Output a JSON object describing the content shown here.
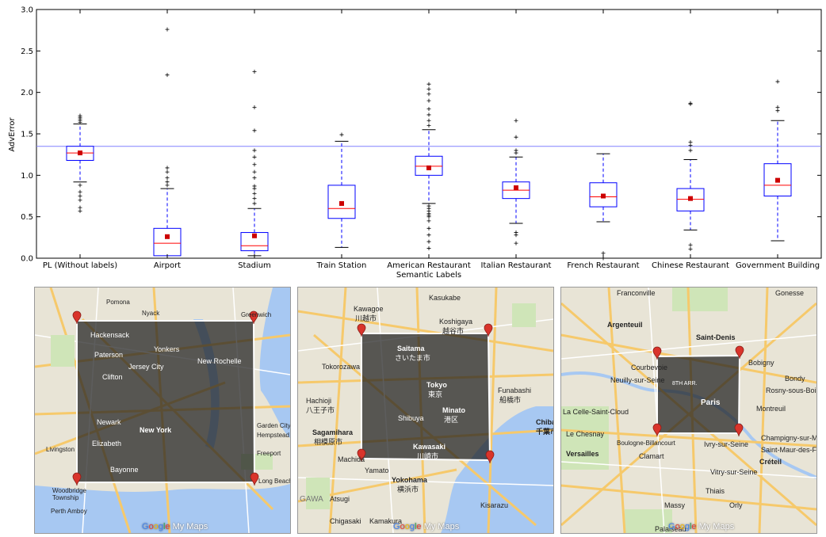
{
  "chart_data": {
    "type": "boxplot",
    "xlabel": "Semantic Labels",
    "ylabel": "AdvError",
    "ylim": [
      0,
      3.0
    ],
    "yticks": [
      "0.0",
      "0.5",
      "1.0",
      "1.5",
      "2.0",
      "2.5",
      "3.0"
    ],
    "reference_line": 1.35,
    "categories": [
      "PL (Without labels)",
      "Airport",
      "Stadium",
      "Train Station",
      "American Restaurant",
      "Italian Restaurant",
      "French Restaurant",
      "Chinese Restaurant",
      "Government Building"
    ],
    "boxes": [
      {
        "q1": 1.18,
        "median": 1.27,
        "q3": 1.35,
        "whislo": 0.92,
        "whishi": 1.62,
        "mean": 1.27,
        "fliers": [
          0.57,
          0.61,
          0.7,
          0.75,
          0.8,
          0.88,
          1.64,
          1.66,
          1.68,
          1.7,
          1.72
        ]
      },
      {
        "q1": 0.03,
        "median": 0.18,
        "q3": 0.36,
        "whislo": 0.0,
        "whishi": 0.84,
        "mean": 0.26,
        "fliers": [
          0.88,
          0.92,
          0.97,
          1.04,
          1.09,
          2.21,
          2.76
        ]
      },
      {
        "q1": 0.09,
        "median": 0.15,
        "q3": 0.31,
        "whislo": 0.03,
        "whishi": 0.6,
        "mean": 0.27,
        "fliers": [
          0.66,
          0.72,
          0.78,
          0.84,
          0.87,
          0.97,
          1.04,
          1.13,
          1.22,
          1.3,
          1.54,
          1.82,
          2.25
        ]
      },
      {
        "q1": 0.48,
        "median": 0.6,
        "q3": 0.88,
        "whislo": 0.13,
        "whishi": 1.41,
        "mean": 0.66,
        "fliers": [
          1.49
        ]
      },
      {
        "q1": 1.0,
        "median": 1.11,
        "q3": 1.23,
        "whislo": 0.66,
        "whishi": 1.55,
        "mean": 1.09,
        "fliers": [
          0.12,
          0.2,
          0.28,
          0.36,
          0.45,
          0.5,
          0.52,
          0.54,
          0.57,
          0.6,
          0.63,
          1.6,
          1.66,
          1.73,
          1.8,
          1.9,
          1.98,
          2.04,
          2.1
        ]
      },
      {
        "q1": 0.72,
        "median": 0.82,
        "q3": 0.92,
        "whislo": 0.42,
        "whishi": 1.22,
        "mean": 0.85,
        "fliers": [
          0.18,
          0.28,
          0.31,
          1.27,
          1.3,
          1.46,
          1.66
        ]
      },
      {
        "q1": 0.62,
        "median": 0.74,
        "q3": 0.91,
        "whislo": 0.44,
        "whishi": 1.26,
        "mean": 0.75,
        "fliers": [
          0.0,
          0.06
        ]
      },
      {
        "q1": 0.57,
        "median": 0.71,
        "q3": 0.84,
        "whislo": 0.34,
        "whishi": 1.19,
        "mean": 0.72,
        "fliers": [
          0.11,
          0.16,
          1.3,
          1.36,
          1.4,
          1.86,
          1.87
        ]
      },
      {
        "q1": 0.75,
        "median": 0.88,
        "q3": 1.14,
        "whislo": 0.21,
        "whishi": 1.66,
        "mean": 0.94,
        "fliers": [
          1.78,
          1.82,
          2.13
        ]
      }
    ],
    "colors": {
      "box": "#0000ff",
      "median": "#ff0000",
      "mean": "#cc0000",
      "reference": "#8080ff"
    }
  },
  "maps": [
    {
      "labels": [
        "New York",
        "Newark",
        "Yonkers",
        "Paterson",
        "Clifton",
        "Elizabeth",
        "Yonkers",
        "Greenwich",
        "Hempstead",
        "Garden City",
        "Woodbridge Township",
        "Perth Amboy",
        "Long Beach",
        "Livingston",
        "Jersey City",
        "Bayonne",
        "Pomona",
        "Nyack",
        "New Rochelle",
        "Hackensack",
        "Freeport"
      ],
      "brand": [
        "G",
        "o",
        "o",
        "g",
        "l",
        "e",
        " My Maps"
      ]
    },
    {
      "labels": [
        "Saitama",
        "さいたま市",
        "Tokyo",
        "東京",
        "Minato",
        "港区",
        "Shibuya",
        "Kawasaki",
        "川崎市",
        "Yokohama",
        "横浜市",
        "Sagamihara",
        "相模原市",
        "Machida",
        "Hachioji",
        "八王子市",
        "Kawagoe",
        "川越市",
        "Koshigaya",
        "越谷市",
        "Funabashi",
        "船橋市",
        "Chiba",
        "千葉市",
        "GAWA",
        "Tokorozawa",
        "Atsugi",
        "Kamakura",
        "Chigasaki",
        "Kisarazu",
        "Kasukabe",
        "Yamato"
      ],
      "brand": [
        "G",
        "o",
        "o",
        "g",
        "l",
        "e",
        " My Maps"
      ]
    },
    {
      "labels": [
        "Paris",
        "Saint-Denis",
        "Argenteuil",
        "Courbevoie",
        "Neuilly-sur-Seine",
        "Boulogne-Billancourt",
        "Clamart",
        "Versailles",
        "Le Chesnay",
        "Ivry-sur-Seine",
        "Vitry-sur-Seine",
        "Créteil",
        "Champigny-sur-Marne",
        "Saint-Maur-des-Fossés",
        "Rosny-sous-Bois",
        "Montreuil",
        "Bobigny",
        "Gonesse",
        "Franconville",
        "La Celle-Saint-Cloud",
        "Orly",
        "Thiais",
        "Palaiseau",
        "Massy",
        "Bondy",
        "8TH ARR."
      ],
      "brand": [
        "G",
        "o",
        "o",
        "g",
        "l",
        "e",
        " My Maps"
      ]
    }
  ]
}
